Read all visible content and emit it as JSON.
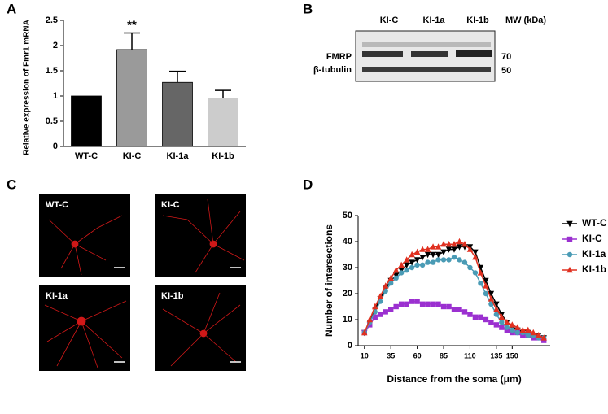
{
  "panel_labels": [
    "A",
    "B",
    "C",
    "D"
  ],
  "blot": {
    "lanes": [
      "KI-C",
      "KI-1a",
      "KI-1b"
    ],
    "mw_label": "MW (kDa)",
    "bands": [
      "FMRP",
      "β-tubulin"
    ],
    "mw_markers": [
      70,
      50
    ]
  },
  "images": {
    "labels": [
      "WT-C",
      "KI-C",
      "KI-1a",
      "KI-1b"
    ]
  },
  "chart_data": [
    {
      "type": "bar",
      "y_label": "Relative expression of Fmr1 mRNA",
      "categories": [
        "WT-C",
        "KI-C",
        "KI-1a",
        "KI-1b"
      ],
      "values": [
        1.0,
        1.92,
        1.27,
        0.96
      ],
      "errors": [
        null,
        0.33,
        0.22,
        0.15
      ],
      "colors": [
        "#000000",
        "#9a9a9a",
        "#666666",
        "#cccccc"
      ],
      "annotation": "**",
      "ylim": [
        0,
        2.5
      ],
      "yticks": [
        0,
        0.5,
        1,
        1.5,
        2,
        2.5
      ]
    },
    {
      "type": "line",
      "x_label": "Distance from the soma (μm)",
      "y_label": "Number of intersections",
      "x": [
        10,
        15,
        20,
        25,
        30,
        35,
        40,
        45,
        50,
        55,
        60,
        65,
        70,
        75,
        80,
        85,
        90,
        95,
        100,
        105,
        110,
        115,
        120,
        125,
        130,
        135,
        140,
        145,
        150,
        155,
        160,
        165,
        170,
        175,
        180
      ],
      "series": [
        {
          "name": "WT-C",
          "color": "#000000",
          "marker": "triangle-down",
          "values": [
            5,
            9,
            14,
            18,
            22,
            25,
            27,
            29,
            31,
            32,
            33,
            34,
            35,
            35,
            35,
            36,
            37,
            37,
            38,
            38,
            38,
            36,
            30,
            25,
            20,
            16,
            12,
            9,
            7,
            6,
            5,
            5,
            4,
            4,
            3
          ]
        },
        {
          "name": "KI-C",
          "color": "#9b30d0",
          "marker": "square",
          "values": [
            5,
            8,
            11,
            12,
            13,
            14,
            15,
            16,
            16,
            17,
            17,
            16,
            16,
            16,
            16,
            15,
            15,
            14,
            14,
            13,
            12,
            11,
            11,
            10,
            9,
            8,
            7,
            6,
            5,
            5,
            4,
            4,
            3,
            3,
            2
          ]
        },
        {
          "name": "KI-1a",
          "color": "#4a9bb5",
          "marker": "circle",
          "values": [
            5,
            9,
            13,
            17,
            21,
            24,
            26,
            28,
            29,
            30,
            31,
            31,
            32,
            32,
            33,
            33,
            33,
            34,
            33,
            32,
            30,
            28,
            24,
            20,
            16,
            12,
            9,
            7,
            6,
            5,
            5,
            4,
            4,
            3,
            3
          ]
        },
        {
          "name": "KI-1b",
          "color": "#e03020",
          "marker": "triangle-up",
          "values": [
            5,
            10,
            15,
            19,
            23,
            26,
            29,
            31,
            33,
            35,
            36,
            37,
            37,
            38,
            38,
            39,
            39,
            39,
            40,
            39,
            37,
            34,
            28,
            23,
            18,
            14,
            11,
            9,
            8,
            7,
            6,
            6,
            5,
            4,
            3
          ]
        }
      ],
      "xlim": [
        4,
        186
      ],
      "xticks": [
        10,
        35,
        60,
        85,
        110,
        135,
        150
      ],
      "ylim": [
        0,
        50
      ],
      "yticks": [
        0,
        10,
        20,
        30,
        40,
        50
      ],
      "legend": "right"
    }
  ]
}
